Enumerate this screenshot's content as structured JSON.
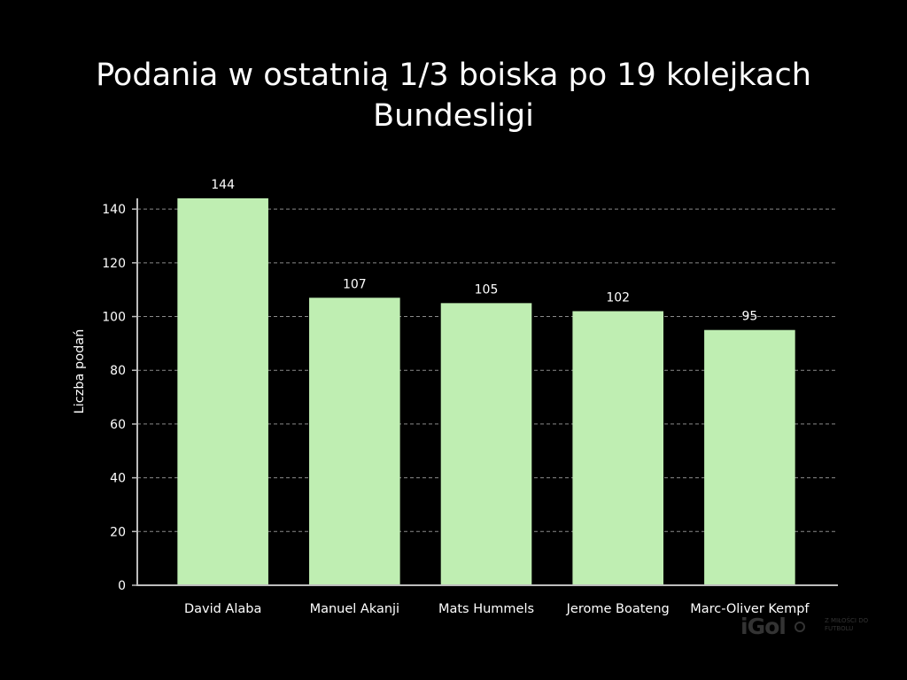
{
  "chart_data": {
    "type": "bar",
    "title_lines": [
      "Podania w ostatnią 1/3 boiska po 19 kolejkach",
      "Bundesligi"
    ],
    "xlabel": "",
    "ylabel": "Liczba podań",
    "categories": [
      "David Alaba",
      "Manuel Akanji",
      "Mats Hummels",
      "Jerome Boateng",
      "Marc-Oliver Kempf"
    ],
    "values": [
      144,
      107,
      105,
      102,
      95
    ],
    "data_labels": [
      "144",
      "107",
      "105",
      "102",
      "95"
    ],
    "ylim": [
      0,
      144
    ],
    "yticks": [
      0,
      20,
      40,
      60,
      80,
      100,
      120,
      140
    ],
    "ytick_labels": [
      "0",
      "20",
      "40",
      "60",
      "80",
      "100",
      "120",
      "140"
    ],
    "grid": "horizontal dashed",
    "colors": {
      "background": "#000000",
      "bar": "#bfeeb2",
      "grid": "#8a8a8a",
      "axis": "#bdbdbd",
      "text": "#ffffff"
    }
  },
  "watermark": {
    "logo": "iGol",
    "tagline": "z miłości do futbolu"
  }
}
